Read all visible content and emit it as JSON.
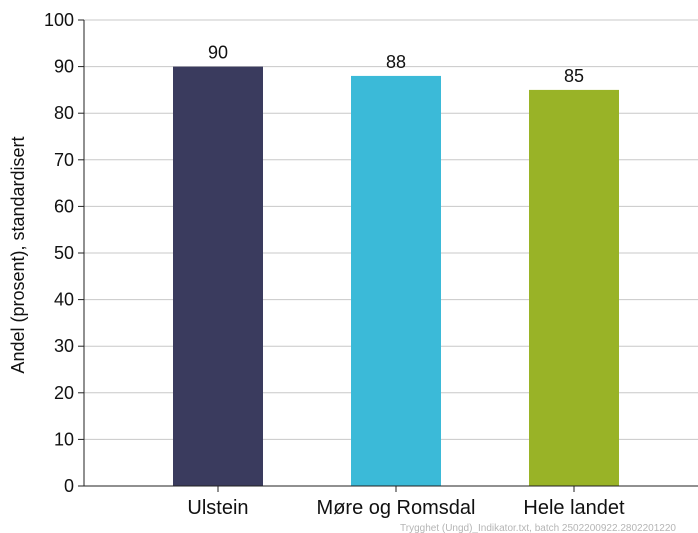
{
  "chart_data": {
    "type": "bar",
    "categories": [
      "Ulstein",
      "Møre og Romsdal",
      "Hele landet"
    ],
    "values": [
      90,
      88,
      85
    ],
    "colors": [
      "#3a3b5e",
      "#3bbad8",
      "#99b327"
    ],
    "ylabel": "Andel (prosent), standardisert",
    "xlabel": "",
    "ylim": [
      0,
      100
    ],
    "yticks": [
      0,
      10,
      20,
      30,
      40,
      50,
      60,
      70,
      80,
      90,
      100
    ],
    "grid": true,
    "gridlines": "horizontal",
    "data_labels": true
  },
  "footer": "Trygghet (Ungd)_Indikator.txt, batch 2502200922.2802201220"
}
